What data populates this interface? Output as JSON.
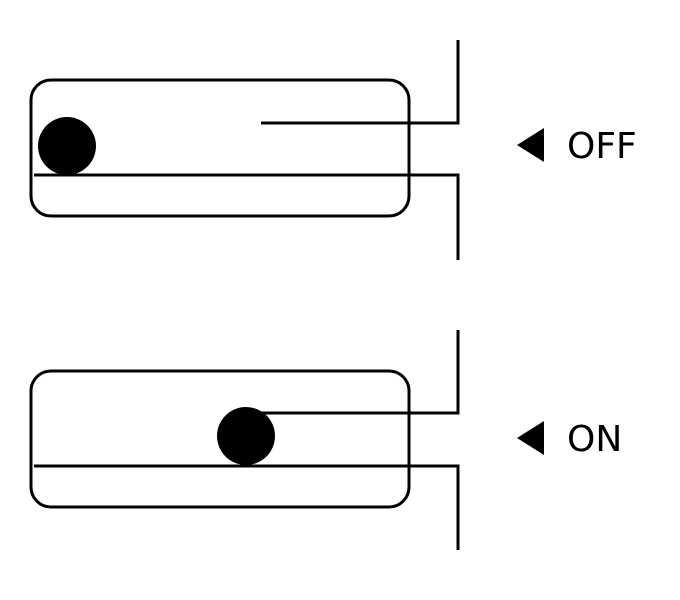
{
  "states": [
    {
      "id": "off",
      "label": "OFF"
    },
    {
      "id": "on",
      "label": "ON"
    }
  ],
  "colors": {
    "line": "#000000",
    "ball": "#000000",
    "background": "#ffffff"
  },
  "icons": {
    "pointer": "left-pointing-triangle"
  }
}
